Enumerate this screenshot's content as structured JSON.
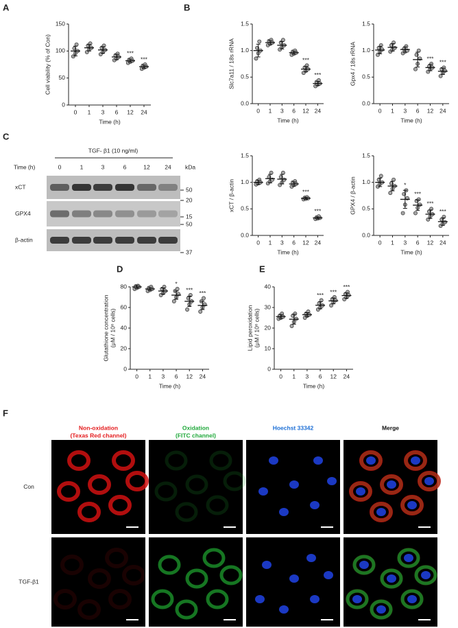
{
  "panel_labels": [
    "A",
    "B",
    "C",
    "D",
    "E",
    "F"
  ],
  "chart_data": [
    {
      "type": "dot",
      "ylabel": [
        "Cell viability (% of Con)"
      ],
      "xlabel": "Time (h)",
      "categories": [
        "0",
        "1",
        "3",
        "6",
        "12",
        "24"
      ],
      "points": [
        [
          90,
          96,
          100,
          105,
          112
        ],
        [
          98,
          103,
          106,
          110,
          114
        ],
        [
          94,
          98,
          102,
          106,
          110
        ],
        [
          83,
          86,
          89,
          92,
          95
        ],
        [
          78,
          80,
          82,
          84,
          86
        ],
        [
          67,
          69,
          71,
          73,
          75
        ]
      ],
      "means": [
        100,
        106,
        102,
        89,
        82,
        71
      ],
      "sd": [
        9,
        6,
        6,
        5,
        3,
        3
      ],
      "stars": [
        null,
        null,
        null,
        null,
        "***",
        "***"
      ],
      "ylim": [
        0,
        150
      ],
      "yticks": [
        0,
        50,
        100,
        150
      ],
      "color": "#a6a6a6"
    },
    {
      "type": "dot",
      "ylabel": [
        "Slc7a11 / 18s rRNA"
      ],
      "xlabel": "Time (h)",
      "categories": [
        "0",
        "1",
        "3",
        "6",
        "12",
        "24"
      ],
      "points": [
        [
          0.85,
          0.95,
          1.0,
          1.05,
          1.17
        ],
        [
          1.1,
          1.13,
          1.15,
          1.18,
          1.2
        ],
        [
          1.02,
          1.07,
          1.1,
          1.15,
          1.2
        ],
        [
          0.92,
          0.94,
          0.96,
          0.98,
          1.0
        ],
        [
          0.58,
          0.62,
          0.65,
          0.68,
          0.72
        ],
        [
          0.33,
          0.36,
          0.38,
          0.41,
          0.44
        ]
      ],
      "means": [
        1.0,
        1.15,
        1.1,
        0.96,
        0.65,
        0.38
      ],
      "sd": [
        0.12,
        0.04,
        0.07,
        0.03,
        0.05,
        0.04
      ],
      "stars": [
        null,
        null,
        null,
        null,
        "***",
        "***"
      ],
      "ylim": [
        0,
        1.5
      ],
      "yticks": [
        {
          "value": 0,
          "label": "0.0"
        },
        0.5,
        {
          "value": 1,
          "label": "1.0"
        },
        1.5
      ],
      "color": "#a6a6a6"
    },
    {
      "type": "dot",
      "ylabel": [
        "Gpx4 / 18s rRNA"
      ],
      "xlabel": "Time (h)",
      "categories": [
        "0",
        "1",
        "3",
        "6",
        "12",
        "24"
      ],
      "points": [
        [
          0.92,
          0.98,
          1.02,
          1.05,
          1.1
        ],
        [
          0.98,
          1.02,
          1.05,
          1.1,
          1.15
        ],
        [
          0.95,
          0.98,
          1.0,
          1.03,
          1.08
        ],
        [
          0.65,
          0.75,
          0.85,
          0.92,
          1.0
        ],
        [
          0.6,
          0.65,
          0.68,
          0.7,
          0.75
        ],
        [
          0.52,
          0.58,
          0.62,
          0.65,
          0.68
        ]
      ],
      "means": [
        1.01,
        1.06,
        1.02,
        0.83,
        0.68,
        0.61
      ],
      "sd": [
        0.07,
        0.07,
        0.05,
        0.14,
        0.06,
        0.06
      ],
      "stars": [
        null,
        null,
        null,
        null,
        "***",
        "***"
      ],
      "ylim": [
        0,
        1.5
      ],
      "yticks": [
        {
          "value": 0,
          "label": "0.0"
        },
        0.5,
        {
          "value": 1,
          "label": "1.0"
        },
        1.5
      ],
      "color": "#a6a6a6"
    },
    {
      "type": "dot",
      "ylabel": [
        "xCT / β-actin"
      ],
      "xlabel": "Time (h)",
      "categories": [
        "0",
        "1",
        "3",
        "6",
        "12",
        "24"
      ],
      "points": [
        [
          0.96,
          0.98,
          1.0,
          1.02,
          1.05
        ],
        [
          0.98,
          1.02,
          1.05,
          1.1,
          1.18
        ],
        [
          0.95,
          1.0,
          1.05,
          1.1,
          1.18
        ],
        [
          0.92,
          0.95,
          0.97,
          1.0,
          1.02
        ],
        [
          0.68,
          0.69,
          0.7,
          0.71,
          0.72
        ],
        [
          0.31,
          0.32,
          0.33,
          0.34,
          0.36
        ]
      ],
      "means": [
        1.0,
        1.07,
        1.06,
        0.97,
        0.7,
        0.33
      ],
      "sd": [
        0.04,
        0.08,
        0.09,
        0.04,
        0.02,
        0.02
      ],
      "stars": [
        null,
        null,
        null,
        null,
        "***",
        "***"
      ],
      "ylim": [
        0,
        1.5
      ],
      "yticks": [
        {
          "value": 0,
          "label": "0.0"
        },
        0.5,
        {
          "value": 1,
          "label": "1.0"
        },
        1.5
      ],
      "color": "#a6a6a6"
    },
    {
      "type": "dot",
      "ylabel": [
        "GPX4 / β-actin"
      ],
      "xlabel": "Time (h)",
      "categories": [
        "0",
        "1",
        "3",
        "6",
        "12",
        "24"
      ],
      "points": [
        [
          0.92,
          0.97,
          1.0,
          1.05,
          1.12
        ],
        [
          0.8,
          0.88,
          0.93,
          0.98,
          1.05
        ],
        [
          0.42,
          0.58,
          0.7,
          0.78,
          0.85
        ],
        [
          0.42,
          0.52,
          0.58,
          0.65,
          0.68
        ],
        [
          0.3,
          0.36,
          0.4,
          0.45,
          0.5
        ],
        [
          0.18,
          0.22,
          0.25,
          0.3,
          0.35
        ]
      ],
      "means": [
        1.0,
        0.93,
        0.68,
        0.57,
        0.4,
        0.26
      ],
      "sd": [
        0.08,
        0.09,
        0.17,
        0.1,
        0.08,
        0.07
      ],
      "stars": [
        null,
        null,
        "*",
        "***",
        "***",
        "***"
      ],
      "ylim": [
        0,
        1.5
      ],
      "yticks": [
        {
          "value": 0,
          "label": "0.0"
        },
        0.5,
        {
          "value": 1,
          "label": "1.0"
        },
        1.5
      ],
      "color": "#a6a6a6"
    },
    {
      "type": "dot",
      "ylabel": [
        "Glutathione concentration",
        "(μM / 10⁶ cells)"
      ],
      "xlabel": "Time (h)",
      "categories": [
        "0",
        "1",
        "3",
        "6",
        "12",
        "24"
      ],
      "points": [
        [
          78,
          79,
          80,
          80.5,
          81
        ],
        [
          76,
          77,
          78,
          79,
          80
        ],
        [
          72,
          74,
          76,
          78,
          80
        ],
        [
          66,
          70,
          73,
          76,
          78
        ],
        [
          58,
          63,
          66,
          69,
          72
        ],
        [
          56,
          60,
          63,
          66,
          69
        ]
      ],
      "means": [
        80,
        78,
        76,
        72,
        66,
        62
      ],
      "sd": [
        1.5,
        1.5,
        3,
        4,
        5,
        4
      ],
      "stars": [
        null,
        null,
        null,
        "*",
        "***",
        "***"
      ],
      "ylim": [
        0,
        80
      ],
      "yticks": [
        0,
        20,
        40,
        60,
        80
      ],
      "color": "#a6a6a6"
    },
    {
      "type": "dot",
      "ylabel": [
        "Lipid peroxidation",
        "(μM / 10⁶ cells)"
      ],
      "xlabel": "Time (h)",
      "categories": [
        "0",
        "1",
        "3",
        "6",
        "12",
        "24"
      ],
      "points": [
        [
          24.5,
          25,
          25.5,
          26,
          27
        ],
        [
          21,
          23,
          24.5,
          26,
          27
        ],
        [
          25,
          26,
          26.5,
          27,
          28
        ],
        [
          29,
          30,
          31,
          32,
          33.5
        ],
        [
          31,
          32.5,
          33.5,
          34,
          35
        ],
        [
          34,
          35,
          36,
          36.5,
          37.5
        ]
      ],
      "means": [
        25.6,
        24.3,
        26.5,
        31.1,
        33.2,
        35.8
      ],
      "sd": [
        1,
        2.4,
        1,
        1.7,
        1.4,
        1.3
      ],
      "stars": [
        null,
        null,
        null,
        "***",
        "***",
        "***"
      ],
      "ylim": [
        0,
        40
      ],
      "yticks": [
        0,
        10,
        20,
        30,
        40
      ],
      "color": "#a6a6a6"
    }
  ],
  "blot": {
    "title": "TGF- β1 (10 ng/ml)",
    "time_label": "Time (h)",
    "lanes": [
      "0",
      "1",
      "3",
      "6",
      "12",
      "24"
    ],
    "unit": "kDa",
    "rows": [
      "xCT",
      "GPX4",
      "β-actin"
    ],
    "markers": [
      50,
      20,
      15,
      50,
      37
    ]
  },
  "imaging": {
    "columns": [
      [
        "Non-oxidation",
        "(Texas Red channel)"
      ],
      [
        "Oxidation",
        "(FITC channel)"
      ],
      [
        "Hoechst 33342"
      ],
      [
        "Merge"
      ]
    ],
    "rows": [
      "Con",
      "TGF-β1"
    ]
  }
}
